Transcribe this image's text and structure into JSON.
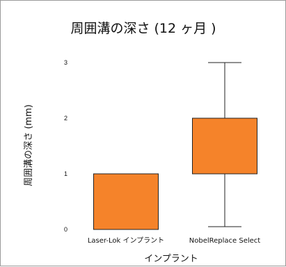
{
  "chart_data": {
    "type": "box",
    "title": "周囲溝の深さ (12 ヶ月 )",
    "xlabel": "インプラント",
    "ylabel": "周囲溝の深さ (mm)",
    "ylim": [
      0,
      3
    ],
    "y_ticks": [
      "0",
      "1",
      "2",
      "3"
    ],
    "categories": [
      "Laser-Lok インプラント",
      "NobelReplace Select"
    ],
    "boxes": [
      {
        "category": "Laser-Lok インプラント",
        "min": 0,
        "q1": 0,
        "median": 0,
        "q3": 1,
        "max": 1
      },
      {
        "category": "NobelReplace Select",
        "min": 0.05,
        "q1": 1,
        "median": 1,
        "q3": 2,
        "max": 3
      }
    ],
    "box_color": "#f5832a",
    "edge_color": "#222222",
    "grid": false
  }
}
